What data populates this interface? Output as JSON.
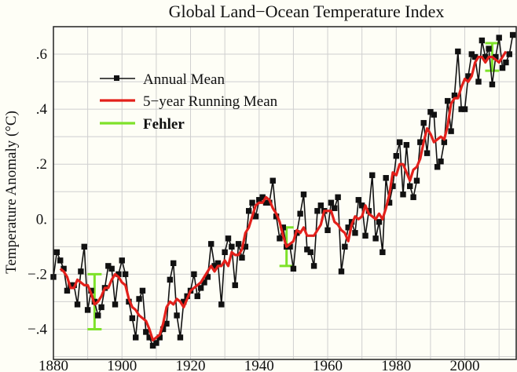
{
  "chart_data": {
    "type": "line",
    "title": "Global Land−Ocean Temperature Index",
    "xlabel": "",
    "ylabel": "Temperature Anomaly (°C)",
    "xlim": [
      1880,
      2015
    ],
    "ylim": [
      -0.51,
      0.7
    ],
    "grid": true,
    "legend_position": "top-left",
    "x_ticks": [
      1880,
      1900,
      1920,
      1940,
      1960,
      1980,
      2000
    ],
    "x_tick_labels": [
      "1880",
      "1900",
      "1920",
      "1940",
      "1960",
      "1980",
      "2000"
    ],
    "y_ticks": [
      0.6,
      0.4,
      0.2,
      0,
      -0.2,
      -0.4
    ],
    "y_tick_labels": [
      ".6",
      ".4",
      ".2",
      "0.",
      "−.2",
      "−.4"
    ],
    "colors": {
      "annual": "#111111",
      "running": "#e3201b",
      "error": "#7ee22a",
      "grid": "#cfcfcf",
      "background": "#fefef6"
    },
    "series": [
      {
        "name": "Annual Mean",
        "x_start": 1880,
        "values": [
          -0.21,
          -0.12,
          -0.15,
          -0.18,
          -0.26,
          -0.24,
          -0.24,
          -0.31,
          -0.19,
          -0.1,
          -0.33,
          -0.26,
          -0.3,
          -0.35,
          -0.32,
          -0.25,
          -0.17,
          -0.18,
          -0.31,
          -0.2,
          -0.15,
          -0.2,
          -0.3,
          -0.36,
          -0.43,
          -0.29,
          -0.26,
          -0.41,
          -0.43,
          -0.46,
          -0.45,
          -0.43,
          -0.4,
          -0.38,
          -0.22,
          -0.16,
          -0.35,
          -0.43,
          -0.3,
          -0.28,
          -0.26,
          -0.2,
          -0.28,
          -0.25,
          -0.23,
          -0.21,
          -0.09,
          -0.17,
          -0.16,
          -0.31,
          -0.12,
          -0.07,
          -0.1,
          -0.24,
          -0.09,
          -0.14,
          -0.1,
          0.03,
          0.06,
          0.01,
          0.07,
          0.08,
          0.06,
          0.06,
          0.14,
          0.01,
          -0.07,
          -0.03,
          -0.1,
          -0.1,
          -0.18,
          -0.05,
          0.02,
          0.09,
          -0.11,
          -0.12,
          -0.17,
          0.03,
          0.05,
          0.03,
          -0.04,
          0.06,
          0.04,
          0.08,
          -0.19,
          -0.1,
          -0.03,
          -0.01,
          -0.05,
          0.07,
          0.05,
          -0.06,
          0.03,
          0.16,
          -0.07,
          -0.01,
          -0.12,
          0.15,
          0.06,
          0.12,
          0.23,
          0.28,
          0.09,
          0.27,
          0.12,
          0.08,
          0.14,
          0.28,
          0.35,
          0.24,
          0.39,
          0.38,
          0.19,
          0.21,
          0.28,
          0.43,
          0.32,
          0.45,
          0.61,
          0.4,
          0.4,
          0.52,
          0.6,
          0.59,
          0.5,
          0.65,
          0.59,
          0.62,
          0.49,
          0.59,
          0.66,
          0.55,
          0.57,
          0.6,
          0.67
        ]
      },
      {
        "name": "5−year Running Mean",
        "x_start": 1882,
        "values": [
          -0.18,
          -0.19,
          -0.21,
          -0.25,
          -0.25,
          -0.22,
          -0.23,
          -0.24,
          -0.24,
          -0.27,
          -0.31,
          -0.3,
          -0.28,
          -0.25,
          -0.25,
          -0.22,
          -0.2,
          -0.21,
          -0.23,
          -0.24,
          -0.29,
          -0.32,
          -0.33,
          -0.35,
          -0.36,
          -0.37,
          -0.4,
          -0.44,
          -0.43,
          -0.42,
          -0.38,
          -0.32,
          -0.3,
          -0.31,
          -0.29,
          -0.3,
          -0.32,
          -0.29,
          -0.26,
          -0.25,
          -0.24,
          -0.23,
          -0.21,
          -0.19,
          -0.17,
          -0.19,
          -0.17,
          -0.17,
          -0.15,
          -0.17,
          -0.12,
          -0.13,
          -0.13,
          -0.11,
          -0.05,
          -0.03,
          0.01,
          0.05,
          0.06,
          0.06,
          0.08,
          0.07,
          0.04,
          0.02,
          -0.01,
          -0.06,
          -0.1,
          -0.09,
          -0.08,
          -0.04,
          -0.05,
          -0.03,
          -0.06,
          -0.06,
          -0.06,
          -0.04,
          -0.02,
          0.03,
          0.03,
          0.03,
          -0.01,
          -0.02,
          -0.04,
          -0.05,
          -0.08,
          -0.02,
          0.01,
          0.0,
          0.01,
          0.05,
          0.02,
          0.01,
          0.0,
          0.02,
          0.0,
          0.04,
          0.09,
          0.17,
          0.16,
          0.2,
          0.2,
          0.17,
          0.14,
          0.18,
          0.19,
          0.22,
          0.28,
          0.33,
          0.31,
          0.28,
          0.29,
          0.3,
          0.29,
          0.34,
          0.42,
          0.44,
          0.44,
          0.48,
          0.51,
          0.5,
          0.52,
          0.57,
          0.59,
          0.59,
          0.57,
          0.59,
          0.59,
          0.58,
          0.57,
          0.59,
          0.61
        ]
      },
      {
        "name": "Fehler",
        "error_bars": [
          {
            "x": 1892,
            "low": -0.4,
            "high": -0.2
          },
          {
            "x": 1948,
            "low": -0.17,
            "high": -0.03
          },
          {
            "x": 2008,
            "low": 0.54,
            "high": 0.64
          }
        ]
      }
    ]
  }
}
